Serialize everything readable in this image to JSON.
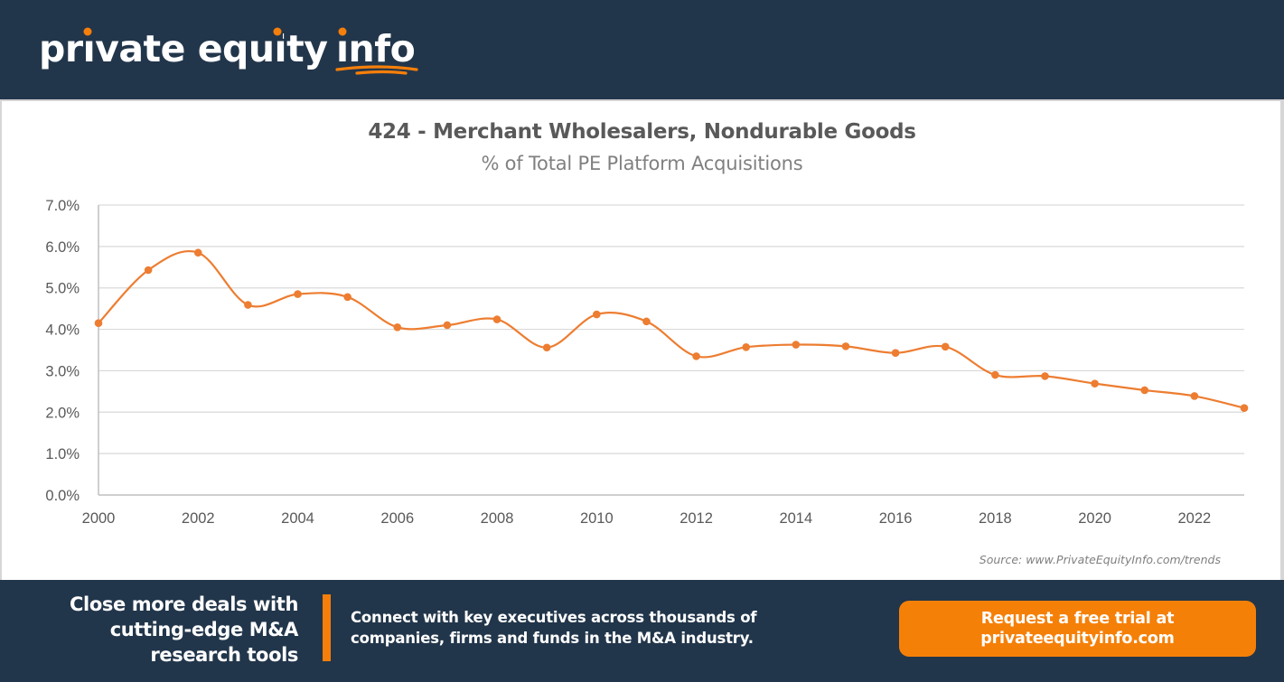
{
  "header": {
    "logo_text": {
      "part1": "private equity",
      "part2": "info"
    },
    "accent_color": "#f57f0a",
    "background_color": "#22364b"
  },
  "chart": {
    "title": "424 - Merchant Wholesalers, Nondurable Goods",
    "subtitle": "% of Total PE Platform Acquisitions",
    "source": "Source: www.PrivateEquityInfo.com/trends",
    "line_color": "#ed7d31"
  },
  "chart_data": {
    "type": "line",
    "title": "424 - Merchant Wholesalers, Nondurable Goods",
    "subtitle": "% of Total PE Platform Acquisitions",
    "xlabel": "",
    "ylabel": "",
    "x": [
      2000,
      2001,
      2002,
      2003,
      2004,
      2005,
      2006,
      2007,
      2008,
      2009,
      2010,
      2011,
      2012,
      2013,
      2014,
      2015,
      2016,
      2017,
      2018,
      2019,
      2020,
      2021,
      2022,
      2023
    ],
    "series": [
      {
        "name": "% of Total PE Platform Acquisitions",
        "values": [
          4.15,
          5.43,
          5.85,
          4.59,
          4.85,
          4.78,
          4.05,
          4.1,
          4.24,
          3.56,
          4.36,
          4.19,
          3.35,
          3.57,
          3.63,
          3.59,
          3.43,
          3.58,
          2.9,
          2.87,
          2.69,
          2.53,
          2.39,
          2.1
        ]
      }
    ],
    "ylim": [
      0,
      7
    ],
    "y_ticks": [
      "0.0%",
      "1.0%",
      "2.0%",
      "3.0%",
      "4.0%",
      "5.0%",
      "6.0%",
      "7.0%"
    ],
    "x_ticks": [
      "2000",
      "2002",
      "2004",
      "2006",
      "2008",
      "2010",
      "2012",
      "2014",
      "2016",
      "2018",
      "2020",
      "2022"
    ],
    "grid": true,
    "smoothed": true,
    "markers": true,
    "legend": "none",
    "source": "Source: www.PrivateEquityInfo.com/trends"
  },
  "footer": {
    "headline_lines": [
      "Close more deals with",
      "cutting-edge M&A",
      "research tools"
    ],
    "description_lines": [
      "Connect with key executives across thousands of",
      "companies, firms and funds in the M&A industry."
    ],
    "cta_lines": [
      "Request a free trial at",
      "privateequityinfo.com"
    ],
    "cta_color": "#f58008"
  }
}
